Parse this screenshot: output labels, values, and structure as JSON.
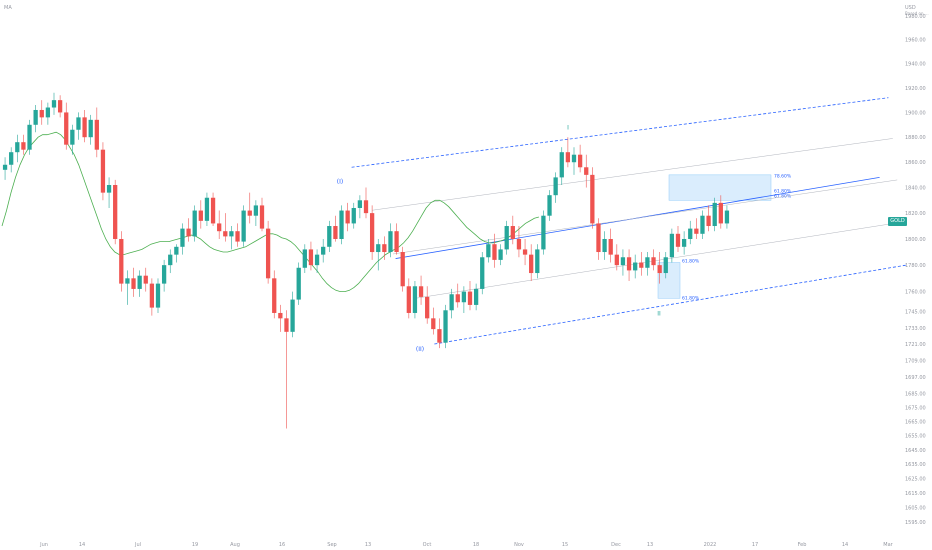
{
  "header": {
    "symbol": "MA",
    "currency": "USD",
    "currency_sub": "Based on ..."
  },
  "price_badge": {
    "text": "GOLD",
    "color": "#26a69a"
  },
  "colors": {
    "up": "#26a69a",
    "down": "#ef5350",
    "ma": "#4caf50",
    "channel": "#2962ff",
    "fib_fill": "#bbdefb"
  },
  "wave_labels": [
    "(I)",
    "(II)",
    "I",
    "II"
  ],
  "fib_labels": [
    "78.60%",
    "61.80%",
    "61.80%",
    "61.80%",
    "61.80%"
  ],
  "chart_data": {
    "type": "candlestick",
    "x_ticks": [
      "Jun",
      "14",
      "Jul",
      "19",
      "Aug",
      "16",
      "Sep",
      "13",
      "Oct",
      "18",
      "Nov",
      "15",
      "Dec",
      "13",
      "2022",
      "17",
      "Feb",
      "14",
      "Mar"
    ],
    "y_ticks": [
      "1980.00",
      "1960.00",
      "1940.00",
      "1920.00",
      "1900.00",
      "1880.00",
      "1860.00",
      "1840.00",
      "1820.00",
      "1800.00",
      "1780.00",
      "1760.00",
      "1745.00",
      "1733.00",
      "1721.00",
      "1709.00",
      "1697.00",
      "1685.00",
      "1675.00",
      "1665.00",
      "1655.00",
      "1645.00",
      "1635.00",
      "1625.00",
      "1615.00",
      "1605.00",
      "1595.00"
    ],
    "ylim": [
      1595,
      1985
    ],
    "scale": "log",
    "last_price": 1820,
    "candles": [
      [
        1854,
        1864,
        1846,
        1858
      ],
      [
        1858,
        1872,
        1852,
        1868
      ],
      [
        1868,
        1882,
        1860,
        1876
      ],
      [
        1876,
        1882,
        1866,
        1870
      ],
      [
        1870,
        1894,
        1866,
        1890
      ],
      [
        1890,
        1906,
        1884,
        1902
      ],
      [
        1902,
        1910,
        1890,
        1896
      ],
      [
        1896,
        1908,
        1890,
        1904
      ],
      [
        1904,
        1916,
        1898,
        1910
      ],
      [
        1910,
        1914,
        1896,
        1900
      ],
      [
        1900,
        1908,
        1870,
        1874
      ],
      [
        1874,
        1890,
        1866,
        1886
      ],
      [
        1886,
        1900,
        1878,
        1896
      ],
      [
        1896,
        1902,
        1876,
        1880
      ],
      [
        1880,
        1898,
        1874,
        1894
      ],
      [
        1894,
        1904,
        1864,
        1870
      ],
      [
        1870,
        1876,
        1830,
        1836
      ],
      [
        1836,
        1848,
        1824,
        1842
      ],
      [
        1842,
        1846,
        1796,
        1800
      ],
      [
        1800,
        1806,
        1760,
        1766
      ],
      [
        1766,
        1776,
        1750,
        1770
      ],
      [
        1770,
        1778,
        1756,
        1762
      ],
      [
        1762,
        1776,
        1756,
        1772
      ],
      [
        1772,
        1778,
        1760,
        1766
      ],
      [
        1766,
        1770,
        1742,
        1748
      ],
      [
        1748,
        1770,
        1744,
        1766
      ],
      [
        1766,
        1784,
        1760,
        1780
      ],
      [
        1780,
        1792,
        1774,
        1788
      ],
      [
        1788,
        1796,
        1782,
        1794
      ],
      [
        1794,
        1812,
        1788,
        1808
      ],
      [
        1808,
        1816,
        1798,
        1802
      ],
      [
        1802,
        1826,
        1798,
        1822
      ],
      [
        1822,
        1830,
        1808,
        1814
      ],
      [
        1814,
        1836,
        1810,
        1832
      ],
      [
        1832,
        1836,
        1810,
        1812
      ],
      [
        1812,
        1822,
        1800,
        1806
      ],
      [
        1806,
        1820,
        1798,
        1802
      ],
      [
        1802,
        1810,
        1792,
        1806
      ],
      [
        1806,
        1812,
        1794,
        1798
      ],
      [
        1798,
        1826,
        1794,
        1822
      ],
      [
        1822,
        1836,
        1812,
        1818
      ],
      [
        1818,
        1830,
        1810,
        1826
      ],
      [
        1826,
        1832,
        1806,
        1808
      ],
      [
        1808,
        1814,
        1766,
        1770
      ],
      [
        1770,
        1776,
        1740,
        1744
      ],
      [
        1744,
        1750,
        1730,
        1740
      ],
      [
        1740,
        1746,
        1660,
        1730
      ],
      [
        1730,
        1760,
        1726,
        1754
      ],
      [
        1754,
        1782,
        1750,
        1778
      ],
      [
        1778,
        1796,
        1774,
        1792
      ],
      [
        1792,
        1798,
        1776,
        1780
      ],
      [
        1780,
        1792,
        1774,
        1788
      ],
      [
        1788,
        1800,
        1782,
        1794
      ],
      [
        1794,
        1814,
        1790,
        1810
      ],
      [
        1810,
        1818,
        1798,
        1800
      ],
      [
        1800,
        1826,
        1796,
        1822
      ],
      [
        1822,
        1828,
        1806,
        1812
      ],
      [
        1812,
        1828,
        1808,
        1824
      ],
      [
        1824,
        1834,
        1816,
        1830
      ],
      [
        1830,
        1840,
        1816,
        1820
      ],
      [
        1820,
        1826,
        1784,
        1790
      ],
      [
        1790,
        1800,
        1776,
        1796
      ],
      [
        1796,
        1802,
        1784,
        1790
      ],
      [
        1790,
        1812,
        1786,
        1806
      ],
      [
        1806,
        1812,
        1788,
        1790
      ],
      [
        1790,
        1794,
        1760,
        1764
      ],
      [
        1764,
        1770,
        1740,
        1744
      ],
      [
        1744,
        1768,
        1740,
        1764
      ],
      [
        1764,
        1772,
        1750,
        1756
      ],
      [
        1756,
        1764,
        1736,
        1740
      ],
      [
        1740,
        1748,
        1728,
        1732
      ],
      [
        1732,
        1740,
        1718,
        1722
      ],
      [
        1722,
        1750,
        1718,
        1746
      ],
      [
        1746,
        1762,
        1740,
        1758
      ],
      [
        1758,
        1766,
        1748,
        1752
      ],
      [
        1752,
        1764,
        1744,
        1760
      ],
      [
        1760,
        1768,
        1746,
        1750
      ],
      [
        1750,
        1766,
        1746,
        1762
      ],
      [
        1762,
        1790,
        1758,
        1786
      ],
      [
        1786,
        1800,
        1782,
        1796
      ],
      [
        1796,
        1804,
        1778,
        1784
      ],
      [
        1784,
        1796,
        1780,
        1792
      ],
      [
        1792,
        1814,
        1788,
        1810
      ],
      [
        1810,
        1818,
        1796,
        1800
      ],
      [
        1800,
        1810,
        1786,
        1792
      ],
      [
        1792,
        1800,
        1780,
        1788
      ],
      [
        1788,
        1796,
        1768,
        1774
      ],
      [
        1774,
        1796,
        1770,
        1792
      ],
      [
        1792,
        1822,
        1788,
        1818
      ],
      [
        1818,
        1838,
        1814,
        1834
      ],
      [
        1834,
        1852,
        1828,
        1848
      ],
      [
        1848,
        1872,
        1842,
        1868
      ],
      [
        1868,
        1880,
        1856,
        1860
      ],
      [
        1860,
        1872,
        1850,
        1866
      ],
      [
        1866,
        1874,
        1852,
        1856
      ],
      [
        1856,
        1866,
        1840,
        1850
      ],
      [
        1850,
        1856,
        1808,
        1812
      ],
      [
        1812,
        1816,
        1784,
        1790
      ],
      [
        1790,
        1806,
        1784,
        1800
      ],
      [
        1800,
        1808,
        1782,
        1788
      ],
      [
        1788,
        1796,
        1776,
        1780
      ],
      [
        1780,
        1792,
        1772,
        1786
      ],
      [
        1786,
        1792,
        1768,
        1776
      ],
      [
        1776,
        1788,
        1770,
        1782
      ],
      [
        1782,
        1790,
        1772,
        1778
      ],
      [
        1778,
        1790,
        1772,
        1786
      ],
      [
        1786,
        1792,
        1776,
        1780
      ],
      [
        1780,
        1790,
        1766,
        1774
      ],
      [
        1774,
        1790,
        1770,
        1786
      ],
      [
        1786,
        1808,
        1782,
        1804
      ],
      [
        1804,
        1810,
        1790,
        1794
      ],
      [
        1794,
        1806,
        1788,
        1800
      ],
      [
        1800,
        1814,
        1796,
        1808
      ],
      [
        1808,
        1816,
        1800,
        1804
      ],
      [
        1804,
        1822,
        1800,
        1818
      ],
      [
        1818,
        1826,
        1806,
        1810
      ],
      [
        1810,
        1832,
        1806,
        1828
      ],
      [
        1828,
        1834,
        1808,
        1812
      ],
      [
        1812,
        1826,
        1808,
        1822
      ]
    ],
    "ma_series": [
      1810,
      1822,
      1836,
      1848,
      1858,
      1866,
      1872,
      1876,
      1880,
      1882,
      1882,
      1883,
      1884,
      1882,
      1878,
      1872,
      1866,
      1858,
      1848,
      1838,
      1828,
      1818,
      1808,
      1800,
      1794,
      1790,
      1788,
      1788,
      1789,
      1790,
      1791,
      1792,
      1794,
      1796,
      1797,
      1798,
      1798,
      1798,
      1799,
      1800,
      1801,
      1802,
      1803,
      1802,
      1800,
      1797,
      1794,
      1792,
      1791,
      1790,
      1790,
      1791,
      1792,
      1793,
      1794,
      1796,
      1798,
      1800,
      1802,
      1804,
      1804,
      1803,
      1801,
      1800,
      1798,
      1795,
      1791,
      1787,
      1783,
      1779,
      1775,
      1770,
      1766,
      1763,
      1761,
      1760,
      1760,
      1761,
      1763,
      1766,
      1770,
      1774,
      1778,
      1782,
      1785,
      1788,
      1790,
      1792,
      1794,
      1797,
      1801,
      1806,
      1812,
      1818,
      1824,
      1828,
      1830,
      1830,
      1828,
      1825,
      1821,
      1817,
      1813,
      1809,
      1806,
      1803,
      1800,
      1798,
      1797,
      1797,
      1798,
      1799,
      1801,
      1803,
      1806,
      1809,
      1812,
      1814,
      1816,
      1817
    ],
    "channel": {
      "lower": [
        [
          0.464,
          1721
        ],
        [
          1.0,
          1780
        ]
      ],
      "mid": [
        [
          0.42,
          1785
        ],
        [
          0.97,
          1848
        ]
      ],
      "upper": [
        [
          0.37,
          1856
        ],
        [
          0.98,
          1912
        ]
      ]
    }
  }
}
